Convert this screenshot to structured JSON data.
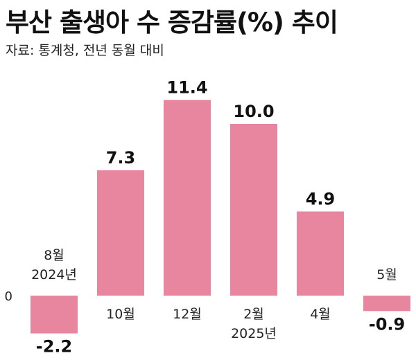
{
  "header": {
    "title": "부산 출생아 수 증감률(%) 추이",
    "source": "자료: 통계청, 전년 동월 대비"
  },
  "colors": {
    "bar": "#E8869F",
    "text": "#111111"
  },
  "chart_data": {
    "type": "bar",
    "title": "부산 출생아 수 증감률(%) 추이",
    "subtitle": "자료: 통계청, 전년 동월 대비",
    "categories": [
      [
        "8월",
        "2024년"
      ],
      [
        "10월"
      ],
      [
        "12월"
      ],
      [
        "2월",
        "2025년"
      ],
      [
        "4월"
      ],
      [
        "5월"
      ]
    ],
    "values": [
      -2.2,
      7.3,
      11.4,
      10.0,
      4.9,
      -0.9
    ],
    "value_labels": [
      "-2.2",
      "7.3",
      "11.4",
      "10.0",
      "4.9",
      "-0.9"
    ],
    "y_tick_labels": [
      "0"
    ],
    "ylim": [
      -2.5,
      12
    ],
    "grid": false,
    "legend": "none"
  }
}
